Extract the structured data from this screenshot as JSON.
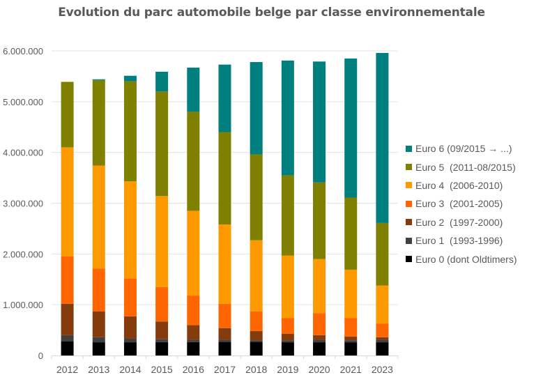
{
  "chart_data": {
    "type": "bar",
    "stacked": true,
    "title": "Evolution du parc automobile belge par classe environnementale",
    "xlabel": "",
    "ylabel": "",
    "ylim": [
      0,
      6000000
    ],
    "yticks": [
      0,
      1000000,
      2000000,
      3000000,
      4000000,
      5000000,
      6000000
    ],
    "ytick_labels": [
      "0",
      "1.000.000",
      "2.000.000",
      "3.000.000",
      "4.000.000",
      "5.000.000",
      "6.000.000"
    ],
    "grid": true,
    "legend_position": "right",
    "categories": [
      "2012",
      "2013",
      "2014",
      "2015",
      "2016",
      "2017",
      "2018",
      "2019",
      "2020",
      "2021",
      "2023"
    ],
    "series": [
      {
        "name": "Euro 0 (dont Oldtimers)",
        "color": "#000000",
        "values": [
          280000,
          260000,
          260000,
          265000,
          265000,
          270000,
          270000,
          260000,
          260000,
          260000,
          260000
        ]
      },
      {
        "name": "Euro 1  (1993-1996)",
        "color": "#404040",
        "values": [
          120000,
          100000,
          70000,
          55000,
          45000,
          40000,
          30000,
          40000,
          50000,
          40000,
          50000
        ]
      },
      {
        "name": "Euro 2  (1997-2000)",
        "color": "#843C0C",
        "values": [
          620000,
          510000,
          440000,
          350000,
          290000,
          230000,
          180000,
          130000,
          90000,
          75000,
          50000
        ]
      },
      {
        "name": "Euro 3  (2001-2005)",
        "color": "#FF6600",
        "values": [
          930000,
          840000,
          750000,
          680000,
          580000,
          480000,
          390000,
          310000,
          430000,
          365000,
          270000
        ]
      },
      {
        "name": "Euro 4  (2006-2010)",
        "color": "#FF9900",
        "values": [
          2150000,
          2030000,
          1910000,
          1790000,
          1670000,
          1560000,
          1400000,
          1230000,
          1070000,
          950000,
          750000
        ]
      },
      {
        "name": "Euro 5  (2011-08/2015)",
        "color": "#7F7F00",
        "values": [
          1290000,
          1680000,
          1970000,
          2060000,
          1950000,
          1820000,
          1690000,
          1580000,
          1510000,
          1420000,
          1230000
        ]
      },
      {
        "name": "Euro 6 (09/2015 → ...)",
        "color": "#007F7F",
        "values": [
          0,
          20000,
          110000,
          390000,
          870000,
          1330000,
          1820000,
          2260000,
          2380000,
          2740000,
          3350000
        ]
      }
    ]
  }
}
